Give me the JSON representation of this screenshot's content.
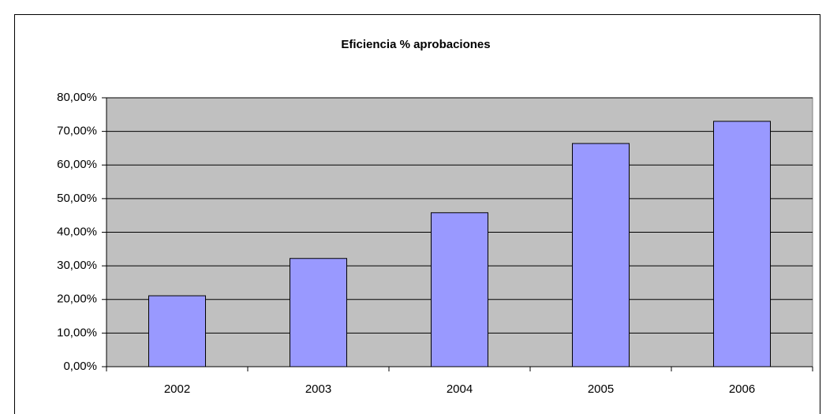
{
  "chart_data": {
    "type": "bar",
    "title": "Eficiencia % aprobaciones",
    "categories": [
      "2002",
      "2003",
      "2004",
      "2005",
      "2006"
    ],
    "values": [
      21.1,
      32.2,
      45.8,
      66.4,
      73.0
    ],
    "color": "#9999ff",
    "ylim": [
      0,
      80
    ],
    "yticks": [
      {
        "value": 0,
        "label": "0,00%"
      },
      {
        "value": 10,
        "label": "10,00%"
      },
      {
        "value": 20,
        "label": "20,00%"
      },
      {
        "value": 30,
        "label": "30,00%"
      },
      {
        "value": 40,
        "label": "40,00%"
      },
      {
        "value": 50,
        "label": "50,00%"
      },
      {
        "value": 60,
        "label": "60,00%"
      },
      {
        "value": 70,
        "label": "70,00%"
      },
      {
        "value": 80,
        "label": "80,00%"
      }
    ],
    "grid": true
  }
}
